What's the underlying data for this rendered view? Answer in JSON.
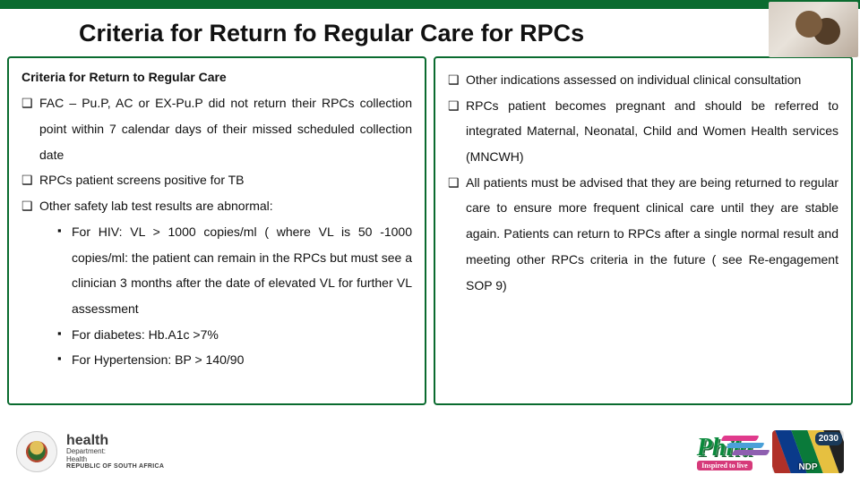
{
  "colors": {
    "brand_green": "#0a6b2f",
    "text": "#111111",
    "background": "#ffffff"
  },
  "title": "Criteria for Return fo Regular Care for RPCs",
  "left": {
    "heading": "Criteria for Return to Regular Care",
    "b1": "FAC – Pu.P, AC or EX-Pu.P did not return their RPCs collection point within 7 calendar days of their missed scheduled collection date",
    "b2": "RPCs patient screens positive for TB",
    "b3": "Other safety lab test results are abnormal:",
    "s1": "For HIV: VL > 1000 copies/ml ( where VL is 50 -1000 copies/ml: the patient can remain in the RPCs but must see a clinician 3 months after the date of elevated VL for further VL assessment",
    "s2": "For diabetes: Hb.A1c >7%",
    "s3": "For Hypertension: BP > 140/90"
  },
  "right": {
    "b1": "Other indications assessed on individual clinical consultation",
    "b2": "RPCs patient becomes pregnant and should be referred to integrated Maternal, Neonatal, Child and Women Health services (MNCWH)",
    "b3": "All patients must be advised that they are being returned to regular care to ensure more frequent clinical care until they are stable again. Patients can return to RPCs after a single normal result and meeting other RPCs criteria in the future ( see Re-engagement SOP 9)"
  },
  "footer": {
    "dept_word": "health",
    "dept_line1": "Department:",
    "dept_line2": "Health",
    "dept_country": "REPUBLIC OF SOUTH AFRICA",
    "phila": "Phila",
    "phila_tag": "Inspired to live",
    "ndp_label": "NDP",
    "ndp_year": "2030"
  }
}
